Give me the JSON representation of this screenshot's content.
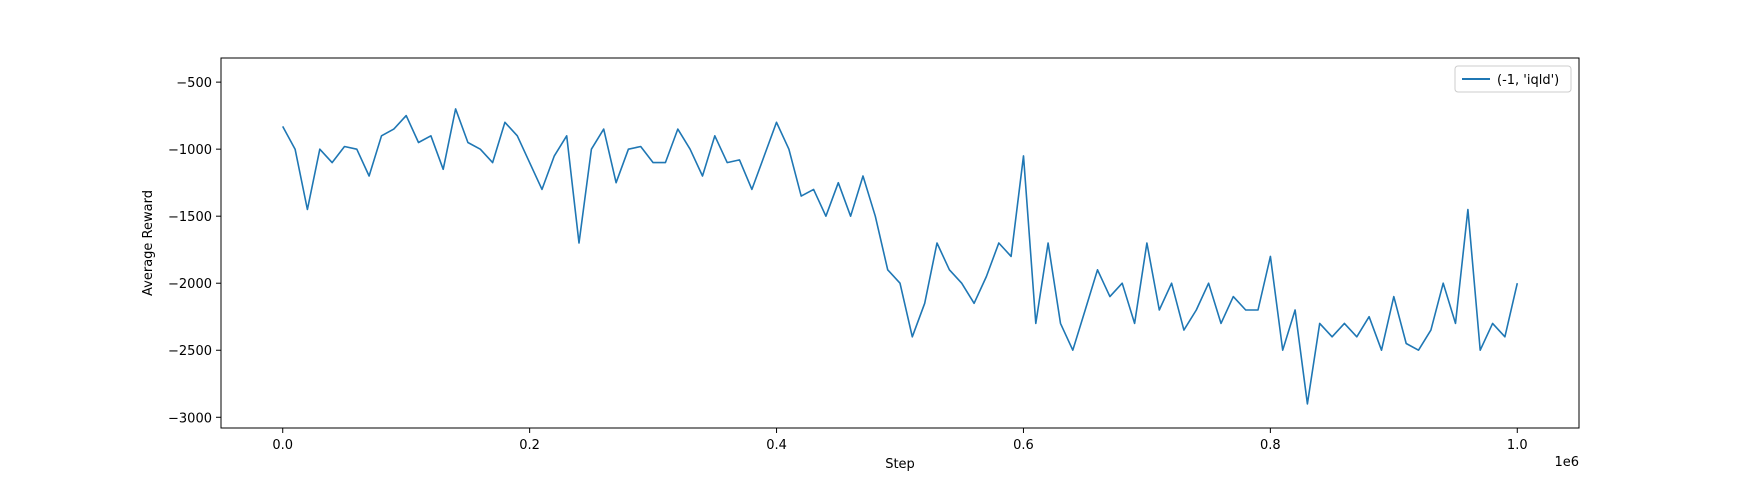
{
  "chart_data": {
    "type": "line",
    "title": "",
    "xlabel": "Step",
    "ylabel": "Average Reward",
    "x_scale_label": "1e6",
    "xlim": [
      -0.05,
      1.05
    ],
    "ylim": [
      -3080,
      -320
    ],
    "xticks": [
      0.0,
      0.2,
      0.4,
      0.6,
      0.8,
      1.0
    ],
    "xtick_labels": [
      "0.0",
      "0.2",
      "0.4",
      "0.6",
      "0.8",
      "1.0"
    ],
    "yticks": [
      -500,
      -1000,
      -1500,
      -2000,
      -2500,
      -3000
    ],
    "ytick_labels": [
      "−500",
      "−1000",
      "−1500",
      "−2000",
      "−2500",
      "−3000"
    ],
    "grid": false,
    "legend_position": "top-right",
    "series": [
      {
        "name": "(-1, 'iqld')",
        "color": "#1f77b4",
        "x": [
          0.0,
          0.01,
          0.02,
          0.03,
          0.04,
          0.05,
          0.06,
          0.07,
          0.08,
          0.09,
          0.1,
          0.11,
          0.12,
          0.13,
          0.14,
          0.15,
          0.16,
          0.17,
          0.18,
          0.19,
          0.2,
          0.21,
          0.22,
          0.23,
          0.24,
          0.25,
          0.26,
          0.27,
          0.28,
          0.29,
          0.3,
          0.31,
          0.32,
          0.33,
          0.34,
          0.35,
          0.36,
          0.37,
          0.38,
          0.39,
          0.4,
          0.41,
          0.42,
          0.43,
          0.44,
          0.45,
          0.46,
          0.47,
          0.48,
          0.49,
          0.5,
          0.51,
          0.52,
          0.53,
          0.54,
          0.55,
          0.56,
          0.57,
          0.58,
          0.59,
          0.6,
          0.61,
          0.62,
          0.63,
          0.64,
          0.65,
          0.66,
          0.67,
          0.68,
          0.69,
          0.7,
          0.71,
          0.72,
          0.73,
          0.74,
          0.75,
          0.76,
          0.77,
          0.78,
          0.79,
          0.8,
          0.81,
          0.82,
          0.83,
          0.84,
          0.85,
          0.86,
          0.87,
          0.88,
          0.89,
          0.9,
          0.91,
          0.92,
          0.93,
          0.94,
          0.95,
          0.96,
          0.97,
          0.98,
          0.99,
          1.0
        ],
        "y": [
          -830,
          -1000,
          -1450,
          -1000,
          -1100,
          -980,
          -1000,
          -1200,
          -900,
          -850,
          -750,
          -950,
          -900,
          -1150,
          -700,
          -950,
          -1000,
          -1100,
          -800,
          -900,
          -1100,
          -1300,
          -1050,
          -900,
          -1700,
          -1000,
          -850,
          -1250,
          -1000,
          -980,
          -1100,
          -1100,
          -850,
          -1000,
          -1200,
          -900,
          -1100,
          -1080,
          -1300,
          -1050,
          -800,
          -1000,
          -1350,
          -1300,
          -1500,
          -1250,
          -1500,
          -1200,
          -1500,
          -1900,
          -2000,
          -2400,
          -2150,
          -1700,
          -1900,
          -2000,
          -2150,
          -1950,
          -1700,
          -1800,
          -1050,
          -2300,
          -1700,
          -2300,
          -2500,
          -2200,
          -1900,
          -2100,
          -2000,
          -2300,
          -1700,
          -2200,
          -2000,
          -2350,
          -2200,
          -2000,
          -2300,
          -2100,
          -2200,
          -2200,
          -1800,
          -2500,
          -2200,
          -2900,
          -2300,
          -2400,
          -2300,
          -2400,
          -2250,
          -2500,
          -2100,
          -2450,
          -2500,
          -2350,
          -2000,
          -2300,
          -1450,
          -2500,
          -2300,
          -2400,
          -2000
        ]
      }
    ]
  }
}
